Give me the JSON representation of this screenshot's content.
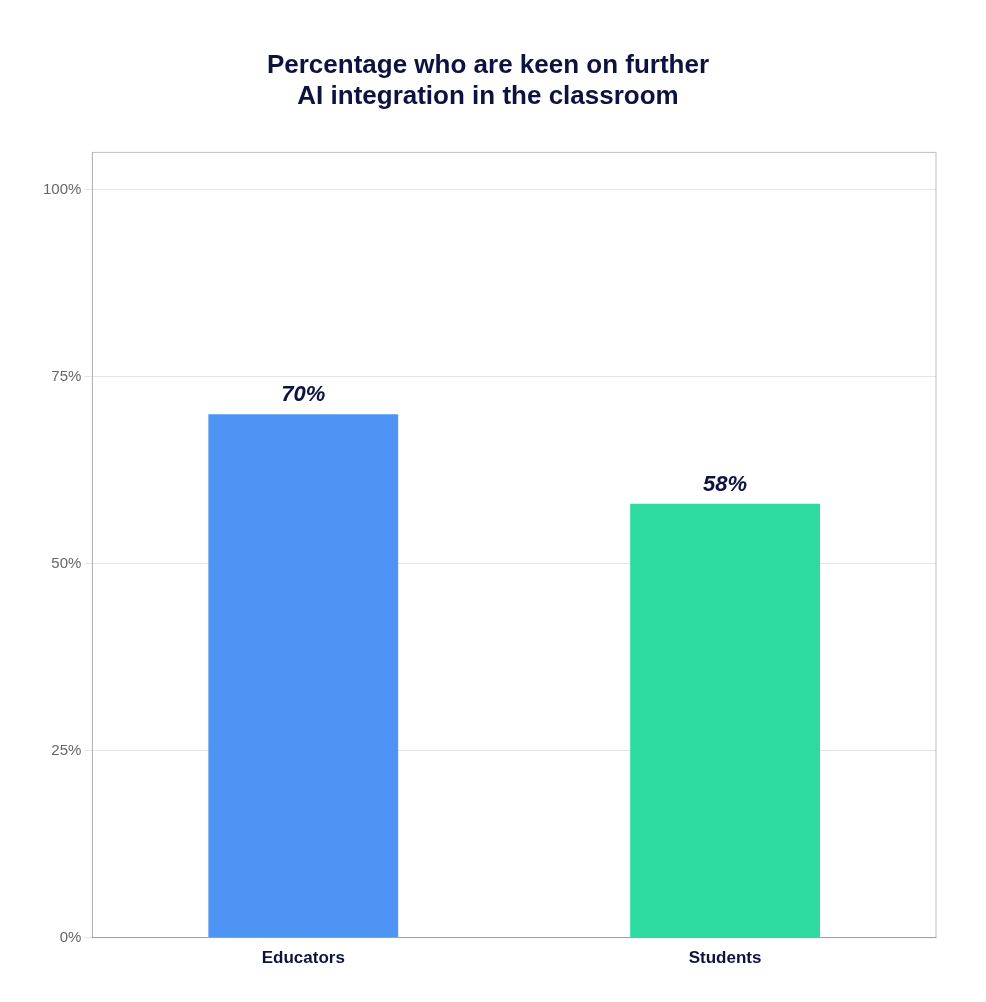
{
  "chart_data": {
    "type": "bar",
    "title": "Percentage who are keen on further\nAI integration in the classroom",
    "categories": [
      "Educators",
      "Students"
    ],
    "values": [
      70,
      58
    ],
    "value_labels": [
      "70%",
      "58%"
    ],
    "data_labels": true,
    "colors": [
      "#4D94F5",
      "#2DDBA0"
    ],
    "ylim": [
      0,
      105
    ],
    "yticks": [
      {
        "value": 0,
        "label": "0%"
      },
      {
        "value": 25,
        "label": "25%"
      },
      {
        "value": 50,
        "label": "50%"
      },
      {
        "value": 75,
        "label": "75%"
      },
      {
        "value": 100,
        "label": "100%"
      }
    ],
    "grid": true
  }
}
